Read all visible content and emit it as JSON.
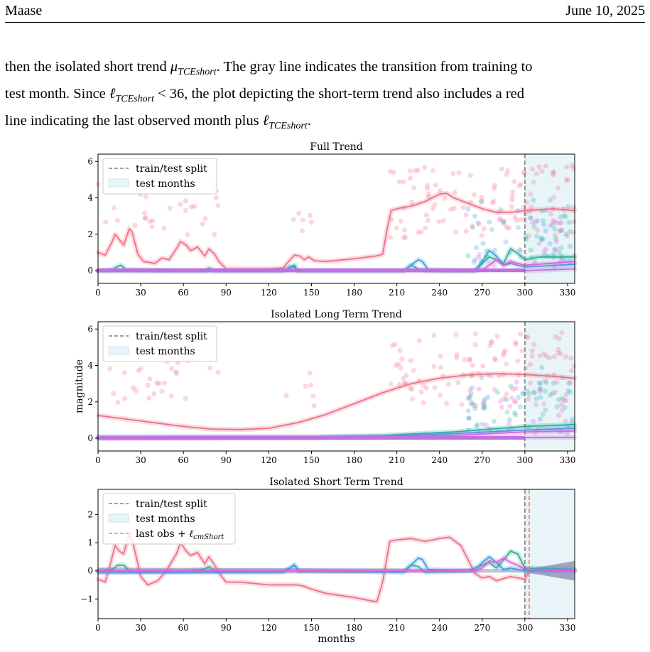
{
  "header": {
    "author": "Maase",
    "date": "June 10, 2025"
  },
  "paragraph": {
    "line1_a": "then the isolated short trend ",
    "line1_math": "μ",
    "line1_math_sub": "TCEshort",
    "line1_b": ". The gray line indicates the transition from training to",
    "line2_a": "test month. Since ",
    "line2_math": "ℓ",
    "line2_math_sub": "TCEshort",
    "line2_b": " < 36, the plot depicting the short-term trend also includes a red",
    "line3_a": "line indicating the last observed month plus ",
    "line3_math": "ℓ",
    "line3_math_sub": "TCEshort",
    "line3_b": "."
  },
  "figure": {
    "shared_ylabel": "magnitude",
    "shared_xlabel": "months",
    "legend": {
      "split": "train/test split",
      "test": "test months",
      "lastobs_prefix": "last obs + ",
      "lastobs_sym": "ℓ",
      "lastobs_sub": "cmShort"
    },
    "colors": {
      "pink": "#f07088",
      "teal": "#2ab09a",
      "blue": "#3a9ee0",
      "magenta": "#e060e0",
      "violet": "#c070e0",
      "split": "#808080",
      "test_fill": "#e8f4f8",
      "red_line": "#f08070",
      "band": "#505a8c"
    }
  },
  "chart_data": [
    {
      "type": "line",
      "title": "Full Trend",
      "xlabel": "",
      "ylabel": "",
      "xlim": [
        0,
        335
      ],
      "ylim": [
        -0.7,
        6.4
      ],
      "xticks": [
        0,
        30,
        60,
        90,
        120,
        150,
        180,
        210,
        240,
        270,
        300,
        330
      ],
      "yticks": [
        0,
        2,
        4,
        6
      ],
      "split_x": 300,
      "test_range": [
        300,
        335
      ],
      "series": [
        {
          "color": "pink",
          "x": [
            0,
            5,
            10,
            12,
            15,
            18,
            22,
            24,
            28,
            32,
            40,
            45,
            50,
            55,
            58,
            62,
            65,
            70,
            75,
            78,
            82,
            85,
            90,
            100,
            120,
            130,
            135,
            138,
            142,
            145,
            148,
            152,
            160,
            180,
            195,
            200,
            203,
            206,
            210,
            220,
            230,
            240,
            245,
            250,
            260,
            270,
            280,
            290,
            300,
            310,
            320,
            335
          ],
          "y": [
            1.0,
            0.85,
            1.6,
            2.0,
            1.7,
            1.4,
            2.3,
            2.1,
            0.9,
            0.5,
            0.4,
            0.7,
            0.6,
            1.2,
            1.6,
            1.4,
            1.1,
            1.3,
            0.8,
            1.2,
            0.9,
            0.5,
            0.1,
            0.1,
            0.1,
            0.15,
            0.6,
            0.85,
            0.8,
            0.6,
            0.75,
            0.55,
            0.5,
            0.65,
            0.8,
            0.9,
            2.2,
            3.3,
            3.4,
            3.55,
            3.8,
            4.2,
            4.25,
            4.0,
            3.7,
            3.4,
            3.2,
            3.2,
            3.3,
            3.35,
            3.4,
            3.3
          ]
        },
        {
          "color": "teal",
          "x": [
            0,
            10,
            13,
            16,
            20,
            60,
            75,
            78,
            82,
            100,
            130,
            135,
            138,
            140,
            200,
            215,
            220,
            225,
            230,
            245,
            265,
            270,
            275,
            280,
            285,
            290,
            295,
            300,
            310,
            335
          ],
          "y": [
            0,
            0.05,
            0.2,
            0.3,
            0.05,
            0,
            0,
            0.15,
            0,
            0,
            0,
            0.2,
            0.3,
            0,
            0,
            0,
            0.3,
            0.1,
            0,
            0,
            0,
            0.4,
            0.75,
            0.6,
            0.4,
            1.2,
            0.95,
            0.6,
            0.75,
            0.75
          ]
        },
        {
          "color": "blue",
          "x": [
            0,
            130,
            135,
            138,
            141,
            215,
            220,
            225,
            228,
            232,
            265,
            270,
            275,
            280,
            285,
            290,
            295,
            300,
            335
          ],
          "y": [
            0,
            0,
            0.2,
            0.2,
            0,
            0,
            0.3,
            0.6,
            0.5,
            0.05,
            0,
            0.5,
            1.1,
            0.8,
            0.3,
            0.4,
            0.3,
            0.2,
            0.35
          ]
        },
        {
          "color": "magenta",
          "x": [
            0,
            260,
            270,
            275,
            280,
            285,
            290,
            295,
            300,
            335
          ],
          "y": [
            0,
            0,
            0.05,
            0.3,
            0.6,
            0.3,
            0.5,
            0.4,
            0.3,
            0.5
          ]
        },
        {
          "color": "violet",
          "x": [
            0,
            300,
            335
          ],
          "y": [
            0,
            0,
            0.1
          ]
        }
      ]
    },
    {
      "type": "line",
      "title": "Isolated Long Term Trend",
      "xlabel": "",
      "ylabel": "magnitude",
      "xlim": [
        0,
        335
      ],
      "ylim": [
        -0.7,
        6.4
      ],
      "xticks": [
        0,
        30,
        60,
        90,
        120,
        150,
        180,
        210,
        240,
        270,
        300,
        330
      ],
      "yticks": [
        0,
        2,
        4,
        6
      ],
      "split_x": 300,
      "test_range": [
        300,
        335
      ],
      "series": [
        {
          "color": "pink",
          "x": [
            0,
            20,
            40,
            60,
            80,
            100,
            120,
            140,
            160,
            180,
            200,
            220,
            240,
            260,
            280,
            300,
            320,
            335
          ],
          "y": [
            1.25,
            1.05,
            0.85,
            0.65,
            0.5,
            0.48,
            0.55,
            0.85,
            1.3,
            1.9,
            2.5,
            3.0,
            3.3,
            3.48,
            3.55,
            3.5,
            3.4,
            3.3
          ]
        },
        {
          "color": "teal",
          "x": [
            0,
            150,
            200,
            250,
            300,
            335
          ],
          "y": [
            0.08,
            0.08,
            0.15,
            0.35,
            0.65,
            0.75
          ]
        },
        {
          "color": "blue",
          "x": [
            0,
            150,
            200,
            250,
            300,
            335
          ],
          "y": [
            0.05,
            0.05,
            0.1,
            0.25,
            0.45,
            0.55
          ]
        },
        {
          "color": "magenta",
          "x": [
            0,
            200,
            250,
            300,
            335
          ],
          "y": [
            0,
            0.05,
            0.15,
            0.35,
            0.4
          ]
        },
        {
          "color": "violet",
          "x": [
            0,
            335
          ],
          "y": [
            0,
            0.05
          ]
        }
      ]
    },
    {
      "type": "line",
      "title": "Isolated Short Term Trend",
      "xlabel": "months",
      "ylabel": "",
      "xlim": [
        0,
        335
      ],
      "ylim": [
        -1.7,
        2.9
      ],
      "xticks": [
        0,
        30,
        60,
        90,
        120,
        150,
        180,
        210,
        240,
        270,
        300,
        330
      ],
      "yticks": [
        -1,
        0,
        1,
        2
      ],
      "split_x": 300,
      "test_range": [
        300,
        335
      ],
      "last_obs_x": 303,
      "series": [
        {
          "color": "pink",
          "x": [
            0,
            5,
            8,
            12,
            15,
            18,
            22,
            25,
            30,
            35,
            42,
            48,
            55,
            58,
            62,
            65,
            70,
            75,
            78,
            82,
            86,
            90,
            100,
            120,
            140,
            145,
            150,
            160,
            180,
            190,
            196,
            200,
            205,
            210,
            220,
            230,
            240,
            247,
            255,
            260,
            265,
            270,
            275,
            280,
            290,
            300,
            303
          ],
          "y": [
            -0.3,
            -0.4,
            0.1,
            0.9,
            0.7,
            0.6,
            1.35,
            0.9,
            -0.2,
            -0.5,
            -0.35,
            0.0,
            0.6,
            1.0,
            0.7,
            0.55,
            0.65,
            0.25,
            0.5,
            0.2,
            -0.15,
            -0.4,
            -0.4,
            -0.5,
            -0.5,
            -0.55,
            -0.65,
            -0.8,
            -0.95,
            -1.05,
            -1.1,
            -0.4,
            1.05,
            1.1,
            1.15,
            1.05,
            1.15,
            1.2,
            0.9,
            0.4,
            -0.1,
            -0.25,
            -0.2,
            -0.35,
            -0.2,
            -0.3,
            0.0
          ]
        },
        {
          "color": "teal",
          "x": [
            0,
            10,
            14,
            18,
            22,
            60,
            74,
            78,
            82,
            130,
            135,
            138,
            141,
            215,
            220,
            225,
            230,
            260,
            270,
            275,
            280,
            285,
            290,
            295,
            300,
            335
          ],
          "y": [
            0,
            0.05,
            0.2,
            0.2,
            0,
            0,
            0.05,
            0.15,
            0,
            0,
            0.1,
            0.2,
            0,
            0,
            0.2,
            0.15,
            -0.05,
            0,
            0.2,
            0.3,
            0.1,
            0.4,
            0.7,
            0.6,
            0.1,
            0.05
          ]
        },
        {
          "color": "blue",
          "x": [
            0,
            130,
            135,
            138,
            141,
            215,
            220,
            225,
            228,
            232,
            265,
            270,
            275,
            280,
            285,
            290,
            295,
            300,
            335
          ],
          "y": [
            -0.05,
            -0.05,
            0.1,
            0.2,
            0,
            -0.05,
            0.2,
            0.45,
            0.4,
            0.05,
            0,
            0.3,
            0.5,
            0.3,
            0.05,
            0.1,
            0.05,
            0.0,
            0.0
          ]
        },
        {
          "color": "magenta",
          "x": [
            0,
            265,
            270,
            275,
            280,
            285,
            290,
            295,
            300,
            335
          ],
          "y": [
            0,
            0,
            0.1,
            0.35,
            0.3,
            0.45,
            0.3,
            0.2,
            0.05,
            0.0
          ]
        }
      ]
    }
  ]
}
